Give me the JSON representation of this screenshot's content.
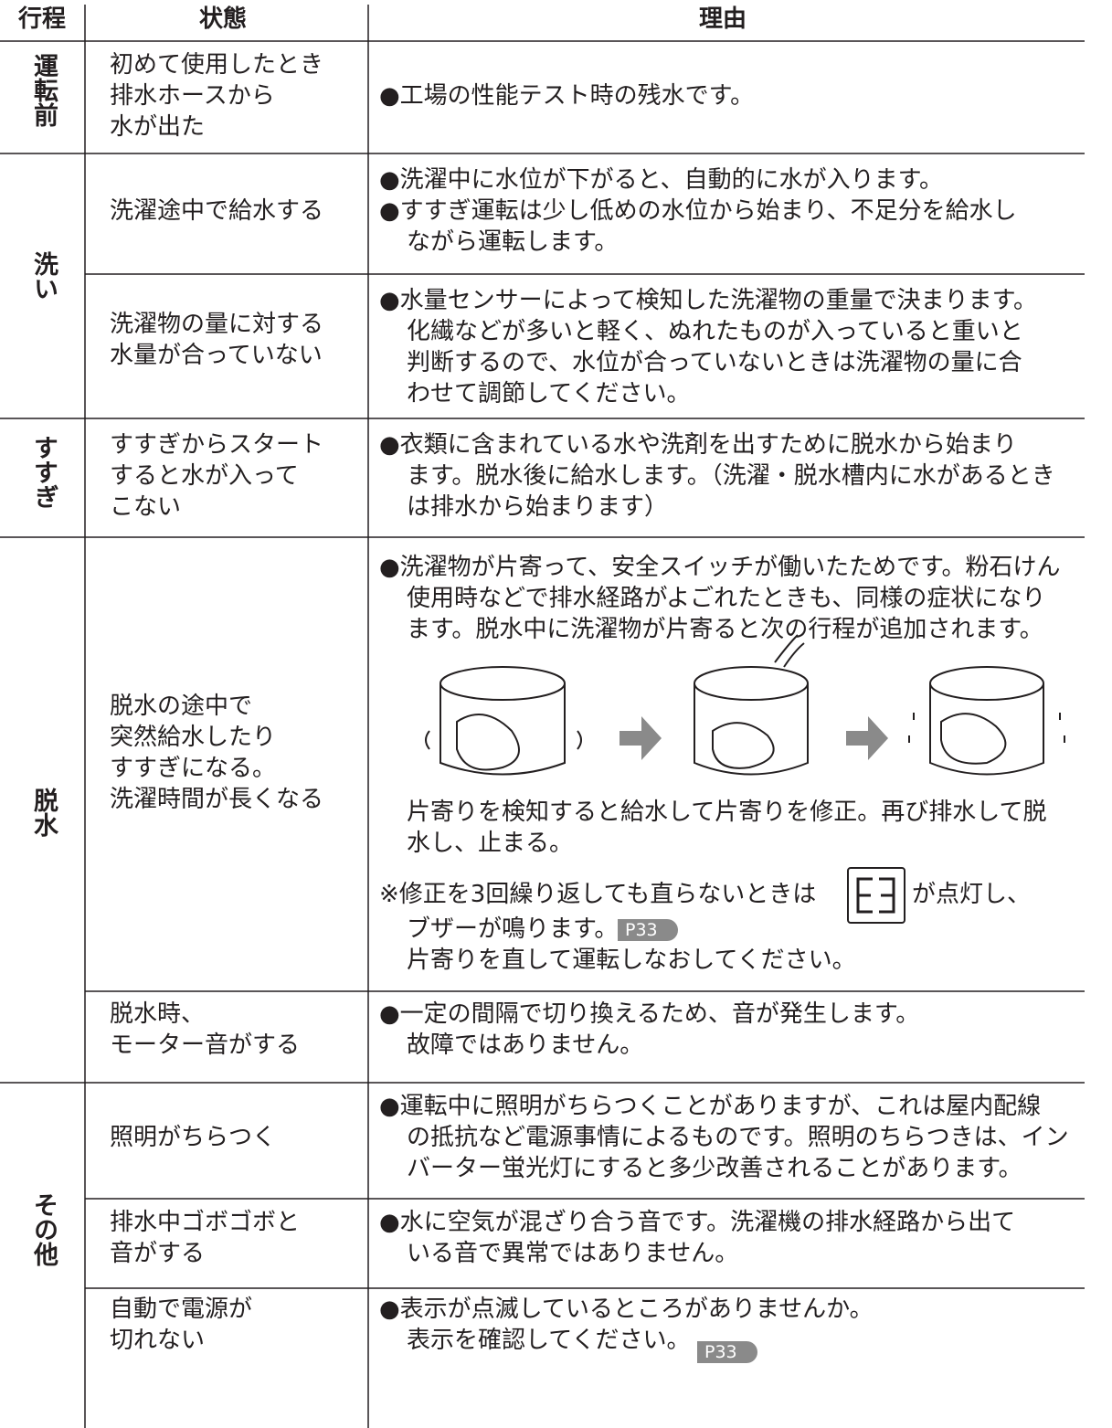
{
  "header": [
    "行程",
    "状態",
    "理由"
  ],
  "groups": [
    {
      "stage": "運転前",
      "rows": [
        {
          "state": [
            "初めて使用したとき",
            "排水ホースから",
            "水が出た"
          ],
          "reason": [
            [
              "●工場の性能テスト時の残水です。"
            ]
          ]
        }
      ]
    },
    {
      "stage": "洗い",
      "rows": [
        {
          "state": [
            "洗濯途中で給水する"
          ],
          "reason": [
            [
              "●洗濯中に水位が下がると、自動的に水が入ります。"
            ],
            [
              "●すすぎ運転は少し低めの水位から始まり、不足分を給水し",
              "ながら運転します。"
            ]
          ]
        },
        {
          "state": [
            "洗濯物の量に対する",
            "水量が合っていない"
          ],
          "reason": [
            [
              "●水量センサーによって検知した洗濯物の重量で決まります。",
              "化繊などが多いと軽く、ぬれたものが入っていると重いと",
              "判断するので、水位が合っていないときは洗濯物の量に合",
              "わせて調節してください。"
            ]
          ]
        }
      ]
    },
    {
      "stage": "すすぎ",
      "rows": [
        {
          "state": [
            "すすぎからスタート",
            "すると水が入って",
            "こない"
          ],
          "reason": [
            [
              "●衣類に含まれている水や洗剤を出すために脱水から始まり",
              "ます。脱水後に給水します。（洗濯・脱水槽内に水があるとき",
              "は排水から始まります）"
            ]
          ]
        }
      ]
    },
    {
      "stage": "脱水",
      "rows": [
        {
          "state": [
            "脱水の途中で",
            "突然給水したり",
            "すすぎになる。",
            "洗濯時間が長くなる"
          ],
          "reason": [
            [
              "●洗濯物が片寄って、安全スイッチが働いたためです。粉石けん",
              "使用時などで排水経路がよごれたときも、同様の症状になり",
              "ます。脱水中に洗濯物が片寄ると次の行程が追加されます。"
            ]
          ],
          "caption": [
            "片寄りを検知すると給水して片寄りを修正。再び排水して脱",
            "水し、止まる。"
          ],
          "note": {
            "line1_before": "※修正を3回繰り返しても直らないときは",
            "line1_after": "が点灯し、",
            "line2": "ブザーが鳴ります。",
            "badge": "P33",
            "line3": "片寄りを直して運転しなおしてください。"
          }
        },
        {
          "state": [
            "脱水時、",
            "モーター音がする"
          ],
          "reason": [
            [
              "●一定の間隔で切り換えるため、音が発生します。",
              "故障ではありません。"
            ]
          ]
        }
      ]
    },
    {
      "stage": "その他",
      "rows": [
        {
          "state": [
            "照明がちらつく"
          ],
          "reason": [
            [
              "●運転中に照明がちらつくことがありますが、これは屋内配線",
              "の抵抗など電源事情によるものです。照明のちらつきは、イン",
              "バーター蛍光灯にすると多少改善されることがあります。"
            ]
          ]
        },
        {
          "state": [
            "排水中ゴボゴボと",
            "音がする"
          ],
          "reason": [
            [
              "●水に空気が混ざり合う音です。洗濯機の排水経路から出て",
              "いる音で異常ではありません。"
            ]
          ]
        },
        {
          "state": [
            "自動で電源が",
            "切れない"
          ],
          "reason": [
            [
              "●表示が点滅しているところがありませんか。",
              "表示を確認してください。"
            ]
          ],
          "badge": "P33"
        }
      ]
    }
  ]
}
